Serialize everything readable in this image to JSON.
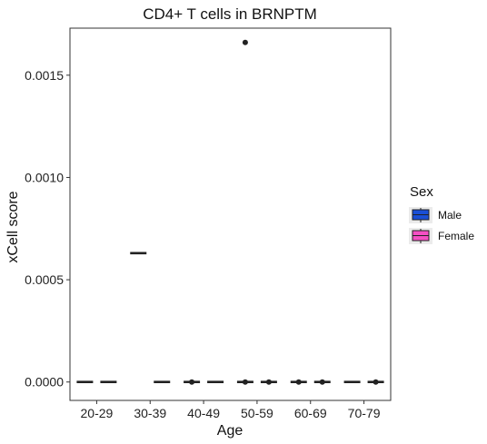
{
  "chart_data": {
    "type": "boxplot",
    "title": "CD4+ T cells in BRNPTM",
    "xlabel": "Age",
    "ylabel": "xCell score",
    "categories": [
      "20-29",
      "30-39",
      "40-49",
      "50-59",
      "60-69",
      "70-79"
    ],
    "yticks": [
      "0.0000",
      "0.0005",
      "0.0010",
      "0.0015"
    ],
    "ylim": [
      -9e-05,
      0.00173
    ],
    "grid": false,
    "legend": {
      "title": "Sex",
      "position": "right"
    },
    "series": [
      {
        "name": "Male",
        "color": "#1a4fd6",
        "boxes": [
          {
            "category": "20-29",
            "median": 0.0,
            "outliers": []
          },
          {
            "category": "30-39",
            "median": 0.00063,
            "outliers": []
          },
          {
            "category": "40-49",
            "median": 0.0,
            "outliers": [
              0.0
            ]
          },
          {
            "category": "50-59",
            "median": 0.0,
            "outliers": [
              0.0,
              0.00166
            ]
          },
          {
            "category": "60-69",
            "median": 0.0,
            "outliers": [
              0.0
            ]
          },
          {
            "category": "70-79",
            "median": 0.0,
            "outliers": []
          }
        ]
      },
      {
        "name": "Female",
        "color": "#f54fc4",
        "boxes": [
          {
            "category": "20-29",
            "median": 0.0,
            "outliers": []
          },
          {
            "category": "30-39",
            "median": 0.0,
            "outliers": []
          },
          {
            "category": "40-49",
            "median": 0.0,
            "outliers": []
          },
          {
            "category": "50-59",
            "median": 0.0,
            "outliers": [
              0.0
            ]
          },
          {
            "category": "60-69",
            "median": 0.0,
            "outliers": [
              0.0
            ]
          },
          {
            "category": "70-79",
            "median": 0.0,
            "outliers": [
              0.0
            ]
          }
        ]
      }
    ]
  }
}
